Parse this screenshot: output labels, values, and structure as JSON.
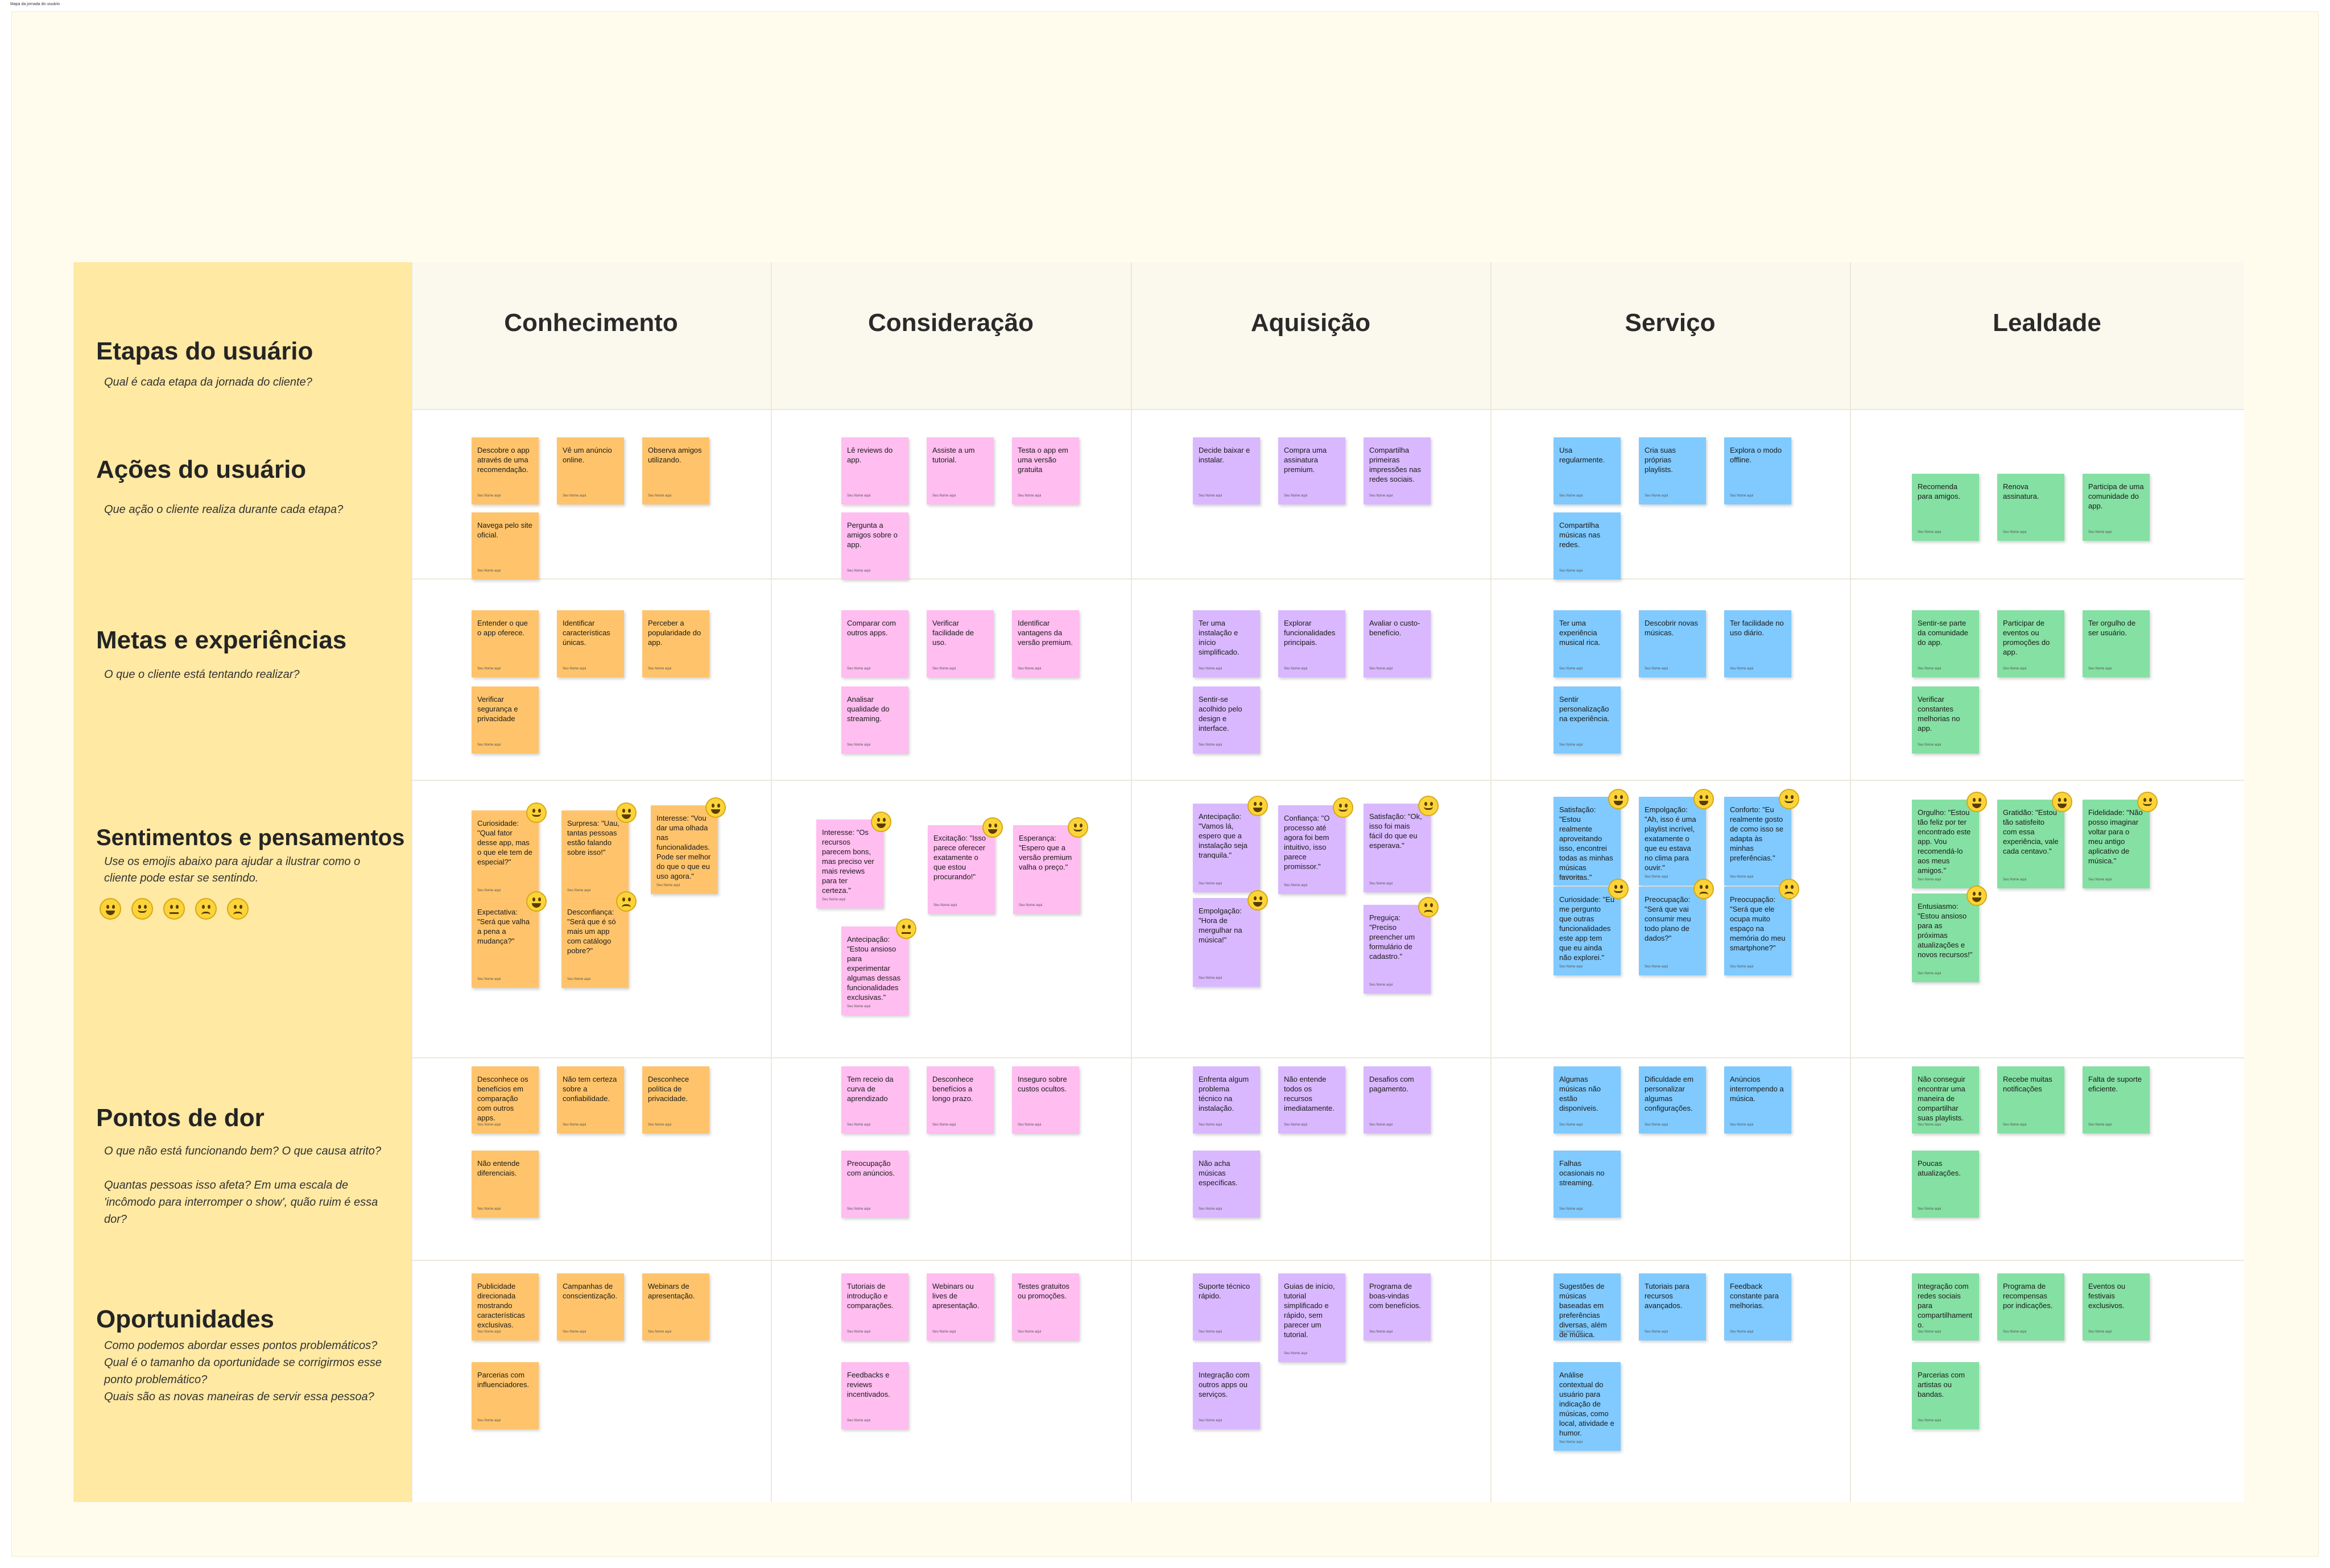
{
  "board_label": "Mapa da jornada do usuário",
  "author_label": "Seu Nome aqui",
  "stages": [
    "Conhecimento",
    "Consideração",
    "Aquisição",
    "Serviço",
    "Lealdade"
  ],
  "rows": [
    {
      "title": "Etapas do usuário",
      "desc": "Qual é cada etapa da jornada do cliente?"
    },
    {
      "title": "Ações do usuário",
      "desc": "Que ação o cliente realiza durante cada etapa?"
    },
    {
      "title": "Metas e experiências",
      "desc": "O que o cliente está tentando realizar?"
    },
    {
      "title": "Sentimentos e pensamentos",
      "desc": "Use os emojis abaixo para ajudar a ilustrar como o cliente pode estar se sentindo."
    },
    {
      "title": "Pontos de dor",
      "desc": "O que não está funcionando bem? O que causa atrito?\n\nQuantas pessoas isso afeta? Em uma escala de 'incômodo para interromper o show', quão ruim é essa dor?"
    },
    {
      "title": "Oportunidades",
      "desc": "Como podemos abordar esses pontos problemáticos? Qual é o tamanho da oportunidade se corrigirmos esse ponto problemático?\nQuais são as novas maneiras de servir essa pessoa?"
    }
  ],
  "emoji_legend": [
    "grinning",
    "smiling",
    "neutral",
    "frowning",
    "angry"
  ],
  "notes": {
    "acoes": [
      [
        "Descobre o app através de uma recomendação.",
        "Vê um anúncio online.",
        "Observa amigos utilizando.",
        "Navega pelo site oficial."
      ],
      [
        "Lê reviews do app.",
        "Assiste a um tutorial.",
        "Testa o app em uma versão gratuita",
        "Pergunta a amigos sobre o app."
      ],
      [
        "Decide baixar e instalar.",
        "Compra uma assinatura premium.",
        "Compartilha primeiras impressões nas redes sociais."
      ],
      [
        "Usa regularmente.",
        "Cria suas próprias playlists.",
        "Explora o modo offline.",
        "Compartilha músicas nas redes."
      ],
      [
        "Recomenda para amigos.",
        "Renova assinatura.",
        "Participa de uma comunidade do app."
      ]
    ],
    "metas": [
      [
        "Entender o que o app oferece.",
        "Identificar características únicas.",
        "Perceber a popularidade do app.",
        "Verificar segurança e privacidade"
      ],
      [
        "Comparar com outros apps.",
        "Verificar facilidade de uso.",
        "Identificar vantagens da versão premium.",
        "Analisar qualidade do streaming."
      ],
      [
        "Ter uma instalação e início simplificado.",
        "Explorar funcionalidades principais.",
        "Avaliar o custo-benefício.",
        "Sentir-se acolhido pelo design e interface."
      ],
      [
        "Ter uma experiência musical rica.",
        "Descobrir novas músicas.",
        "Ter facilidade no uso diário.",
        "Sentir personalização na experiência."
      ],
      [
        "Sentir-se parte da comunidade do app.",
        "Participar de eventos ou promoções do app.",
        "Ter orgulho de ser usuário.",
        "Verificar constantes melhorias no app."
      ]
    ],
    "sentimentos": [
      [
        [
          "Curiosidade: \"Qual fator desse app, mas o que ele tem de especial?\"",
          "smiling"
        ],
        [
          "Surpresa: \"Uau, tantas pessoas estão falando sobre isso!\"",
          "grinning"
        ],
        [
          "Interesse: \"Vou dar uma olhada nas funcionalidades. Pode ser melhor do que o que eu uso agora.\"",
          "grinning"
        ],
        [
          "Expectativa: \"Será que valha a pena a mudança?\"",
          "grinning"
        ],
        [
          "Desconfiança: \"Será que é só mais um app com catálogo pobre?\"",
          "frowning"
        ]
      ],
      [
        [
          "Interesse: \"Os recursos parecem bons, mas preciso ver mais reviews para ter certeza.\"",
          "grinning"
        ],
        [
          "Excitação: \"Isso parece oferecer exatamente o que estou procurando!\"",
          "grinning"
        ],
        [
          "Esperança: \"Espero que a versão premium valha o preço.\"",
          "smiling"
        ],
        [
          "Antecipação: \"Estou ansioso para experimentar algumas dessas funcionalidades exclusivas.\"",
          "neutral"
        ]
      ],
      [
        [
          "Antecipação: \"Vamos lá, espero que a instalação seja tranquila.\"",
          "grinning"
        ],
        [
          "Confiança: \"O processo até agora foi bem intuitivo, isso parece promissor.\"",
          "smiling"
        ],
        [
          "Satisfação: \"Ok, isso foi mais fácil do que eu esperava.\"",
          "smiling"
        ],
        [
          "Empolgação: \"Hora de mergulhar na música!\"",
          "grinning"
        ],
        [
          "Preguiça: \"Preciso preencher um formulário de cadastro.\"",
          "angry"
        ]
      ],
      [
        [
          "Satisfação: \"Estou realmente aproveitando isso, encontrei todas as minhas músicas favoritas.\"",
          "grinning"
        ],
        [
          "Empolgação: \"Ah, isso é uma playlist incrível, exatamente o que eu estava no clima para ouvir.\"",
          "grinning"
        ],
        [
          "Conforto: \"Eu realmente gosto de como isso se adapta às minhas preferências.\"",
          "smiling"
        ],
        [
          "Curiosidade: \"Eu me pergunto que outras funcionalidades este app tem que eu ainda não explorei.\"",
          "smiling"
        ],
        [
          "Preocupação: \"Será que vai consumir meu todo plano de dados?\"",
          "frowning"
        ],
        [
          "Preocupação: \"Será que ele ocupa muito espaço na memória do meu smartphone?\"",
          "frowning"
        ]
      ],
      [
        [
          "Orgulho: \"Estou tão feliz por ter encontrado este app. Vou recomendá-lo aos meus amigos.\"",
          "grinning"
        ],
        [
          "Gratidão: \"Estou tão satisfeito com essa experiência, vale cada centavo.\"",
          "grinning"
        ],
        [
          "Fidelidade: \"Não posso imaginar voltar para o meu antigo aplicativo de música.\"",
          "smiling"
        ],
        [
          "Entusiasmo: \"Estou ansioso para as próximas atualizações e novos recursos!\"",
          "grinning"
        ]
      ]
    ],
    "dor": [
      [
        "Desconhece os benefícios em comparação com outros apps.",
        "Não tem certeza sobre a confiabilidade.",
        "Desconhece política de privacidade.",
        "Não entende diferenciais."
      ],
      [
        "Tem receio da curva de aprendizado",
        "Desconhece benefícios a longo prazo.",
        "Inseguro sobre custos ocultos.",
        "Preocupação com anúncios."
      ],
      [
        "Enfrenta algum problema técnico na instalação.",
        "Não entende todos os recursos imediatamente.",
        "Desafios com pagamento.",
        "Não acha músicas específicas."
      ],
      [
        "Algumas músicas não estão disponíveis.",
        "Dificuldade em personalizar algumas configurações.",
        "Anúncios interrompendo a música.",
        "Falhas ocasionais no streaming."
      ],
      [
        "Não conseguir encontrar uma maneira de compartilhar suas playlists.",
        "Recebe muitas notificações",
        "Falta de suporte eficiente.",
        "Poucas atualizações."
      ]
    ],
    "oport": [
      [
        "Publicidade direcionada mostrando características exclusivas.",
        "Campanhas de conscientização.",
        "Webinars de apresentação.",
        "Parcerias com influenciadores."
      ],
      [
        "Tutoriais de introdução e comparações.",
        "Webinars ou lives de apresentação.",
        "Testes gratuitos ou promoções.",
        "Feedbacks e reviews incentivados."
      ],
      [
        "Suporte técnico rápido.",
        "Guias de início, tutorial simplificado e rápido, sem parecer um tutorial.",
        "Programa de boas-vindas com benefícios.",
        "Integração com outros apps ou serviços."
      ],
      [
        "Sugestões de músicas baseadas em preferências diversas, além de música.",
        "Tutoriais para recursos avançados.",
        "Feedback constante para melhorias.",
        "Análise contextual do usuário para indicação de músicas, como local, atividade e humor."
      ],
      [
        "Integração com redes sociais para compartilhamento.",
        "Programa de recompensas por indicações.",
        "Eventos ou festivais exclusivos.",
        "Parcerias com artistas ou bandas."
      ]
    ]
  },
  "colors": {
    "orange": "#ffc46b",
    "pink": "#ffbdf0",
    "purple": "#d9b8ff",
    "blue": "#80caff",
    "green": "#85e0a3",
    "left_column": "#ffe9a3",
    "board": "#fffcee"
  }
}
